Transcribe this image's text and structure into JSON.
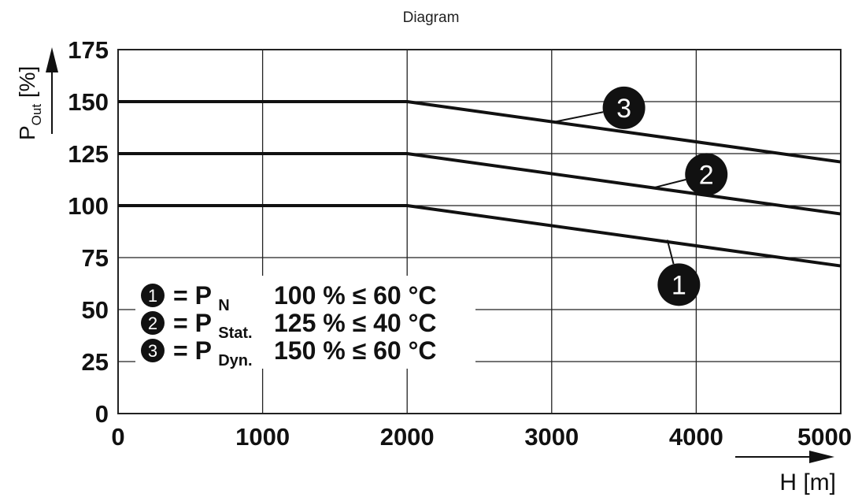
{
  "chart_data": {
    "type": "line",
    "title": "Diagram",
    "xlabel": "H [m]",
    "ylabel_main": "P",
    "ylabel_sub": "Out",
    "ylabel_unit": "[%]",
    "xlim": [
      0,
      5000
    ],
    "ylim": [
      0,
      175
    ],
    "x_ticks": [
      0,
      1000,
      2000,
      3000,
      4000,
      5000
    ],
    "y_ticks": [
      0,
      25,
      50,
      75,
      100,
      125,
      150,
      175
    ],
    "grid": true,
    "series": [
      {
        "name": "1",
        "x": [
          0,
          2000,
          5000
        ],
        "y": [
          100,
          100,
          71
        ]
      },
      {
        "name": "2",
        "x": [
          0,
          2000,
          5000
        ],
        "y": [
          125,
          125,
          96
        ]
      },
      {
        "name": "3",
        "x": [
          0,
          2000,
          5000
        ],
        "y": [
          150,
          150,
          121
        ]
      }
    ],
    "callouts": [
      {
        "number": "1",
        "pointer_x": 3800,
        "pointer_y": 83.5,
        "label_x": 3880,
        "label_y": 62
      },
      {
        "number": "2",
        "pointer_x": 3700,
        "pointer_y": 108.5,
        "label_x": 4070,
        "label_y": 115
      },
      {
        "number": "3",
        "pointer_x": 3000,
        "pointer_y": 140,
        "label_x": 3500,
        "label_y": 147
      }
    ],
    "legend": [
      {
        "number": "1",
        "symbol": "= P",
        "sub": "N",
        "text": "100 % ≤ 60 °C"
      },
      {
        "number": "2",
        "symbol": "= P",
        "sub": "Stat.",
        "text": "125 % ≤ 40 °C"
      },
      {
        "number": "3",
        "symbol": "= P",
        "sub": "Dyn.",
        "text": "150 % ≤ 60 °C"
      }
    ],
    "legend_placement": "bottom-left"
  }
}
